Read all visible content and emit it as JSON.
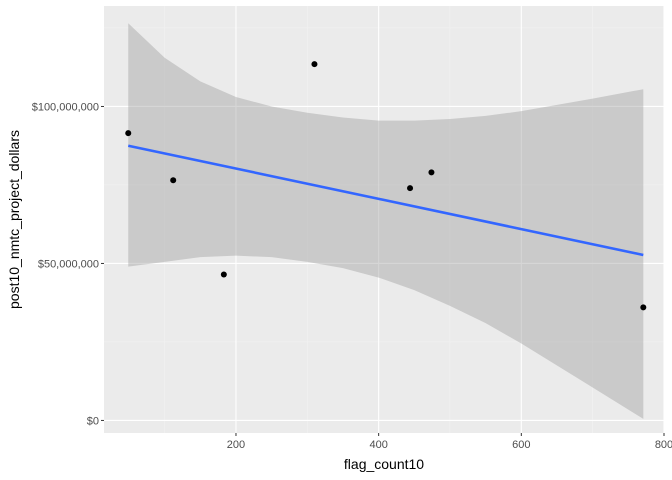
{
  "chart_data": {
    "type": "scatter",
    "xlabel": "flag_count10",
    "ylabel": "post10_nmtc_project_dollars",
    "xlim": [
      15,
      800
    ],
    "ylim": [
      -4000000,
      132000000
    ],
    "x_major_ticks": [
      200,
      400,
      600,
      800
    ],
    "x_minor_ticks": [
      100,
      300,
      500,
      700
    ],
    "y_major_ticks": [
      0,
      50000000,
      100000000
    ],
    "y_minor_ticks": [
      25000000,
      75000000,
      125000000
    ],
    "y_tick_labels": [
      "$0",
      "$50,000,000",
      "$100,000,000"
    ],
    "x_tick_labels": [
      "200",
      "400",
      "600",
      "800"
    ],
    "points": [
      {
        "x": 49,
        "y": 91500000
      },
      {
        "x": 112,
        "y": 76500000
      },
      {
        "x": 183,
        "y": 46500000
      },
      {
        "x": 310,
        "y": 113500000
      },
      {
        "x": 444,
        "y": 74000000
      },
      {
        "x": 474,
        "y": 79000000
      },
      {
        "x": 771,
        "y": 36000000
      }
    ],
    "trend": {
      "type": "lm",
      "x": [
        49,
        771
      ],
      "y": [
        87500000,
        52700000
      ]
    },
    "confidence_band": {
      "x": [
        49,
        100,
        150,
        200,
        250,
        300,
        350,
        400,
        450,
        500,
        550,
        600,
        650,
        700,
        771
      ],
      "upper": [
        126500000,
        115500000,
        108000000,
        103000000,
        100000000,
        98000000,
        96500000,
        95500000,
        95500000,
        96000000,
        97000000,
        98500000,
        100500000,
        102500000,
        105500000
      ],
      "lower": [
        49000000,
        50500000,
        52000000,
        52500000,
        52000000,
        50500000,
        48500000,
        45500000,
        41500000,
        36500000,
        31000000,
        24500000,
        17500000,
        10500000,
        500000
      ]
    },
    "colors": {
      "panel": "#ebebeb",
      "grid_major": "#ffffff",
      "grid_minor": "#f2f2f2",
      "point": "#000000",
      "line": "#3366ff",
      "band": "#999999"
    },
    "grid": true,
    "legend": "none"
  }
}
